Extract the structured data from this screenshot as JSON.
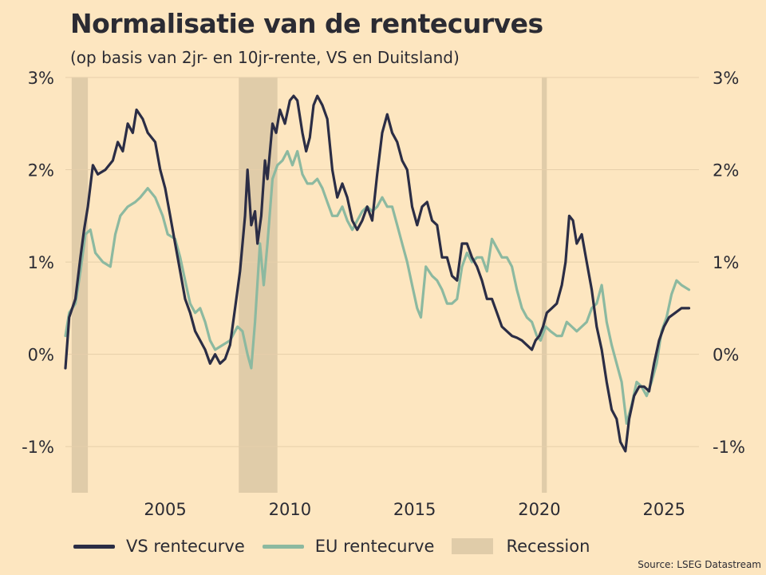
{
  "title": "Normalisatie van de rentecurves",
  "subtitle": "(op basis van 2jr- en 10jr-rente, VS en Duitsland)",
  "source": "Source: LSEG Datastream",
  "legend": {
    "vs": "VS rentecurve",
    "eu": "EU rentecurve",
    "recession": "Recession"
  },
  "colors": {
    "background": "#fde6c0",
    "vs": "#2b2d45",
    "eu": "#8cb9a0",
    "recession": "#e0cca9",
    "grid": "#e6cfaa"
  },
  "chart_data": {
    "type": "line",
    "xlim": [
      2001.0,
      2026.4
    ],
    "ylim": [
      -1.5,
      3.0
    ],
    "x_ticks": [
      {
        "value": 2005,
        "label": "2005"
      },
      {
        "value": 2010,
        "label": "2010"
      },
      {
        "value": 2015,
        "label": "2015"
      },
      {
        "value": 2020,
        "label": "2020"
      },
      {
        "value": 2025,
        "label": "2025"
      }
    ],
    "y_ticks": [
      {
        "value": 3,
        "label": "3%"
      },
      {
        "value": 2,
        "label": "2%"
      },
      {
        "value": 1,
        "label": "1%"
      },
      {
        "value": 0,
        "label": "0%"
      },
      {
        "value": -1,
        "label": "-1%"
      }
    ],
    "recessions": [
      {
        "start": 2001.25,
        "end": 2001.9
      },
      {
        "start": 2007.95,
        "end": 2009.5
      },
      {
        "start": 2020.1,
        "end": 2020.3
      }
    ],
    "series": [
      {
        "name": "VS rentecurve",
        "points": [
          [
            2001.0,
            -0.15
          ],
          [
            2001.15,
            0.4
          ],
          [
            2001.4,
            0.6
          ],
          [
            2001.6,
            1.05
          ],
          [
            2001.75,
            1.35
          ],
          [
            2001.9,
            1.6
          ],
          [
            2002.1,
            2.05
          ],
          [
            2002.3,
            1.95
          ],
          [
            2002.6,
            2.0
          ],
          [
            2002.9,
            2.1
          ],
          [
            2003.1,
            2.3
          ],
          [
            2003.3,
            2.2
          ],
          [
            2003.5,
            2.5
          ],
          [
            2003.7,
            2.4
          ],
          [
            2003.85,
            2.65
          ],
          [
            2004.1,
            2.55
          ],
          [
            2004.3,
            2.4
          ],
          [
            2004.6,
            2.3
          ],
          [
            2004.8,
            2.0
          ],
          [
            2005.0,
            1.8
          ],
          [
            2005.2,
            1.5
          ],
          [
            2005.4,
            1.2
          ],
          [
            2005.6,
            0.9
          ],
          [
            2005.8,
            0.6
          ],
          [
            2006.0,
            0.45
          ],
          [
            2006.2,
            0.25
          ],
          [
            2006.4,
            0.15
          ],
          [
            2006.6,
            0.05
          ],
          [
            2006.8,
            -0.1
          ],
          [
            2007.0,
            0.0
          ],
          [
            2007.2,
            -0.1
          ],
          [
            2007.4,
            -0.05
          ],
          [
            2007.6,
            0.1
          ],
          [
            2007.8,
            0.5
          ],
          [
            2008.0,
            0.9
          ],
          [
            2008.2,
            1.5
          ],
          [
            2008.3,
            2.0
          ],
          [
            2008.45,
            1.4
          ],
          [
            2008.6,
            1.55
          ],
          [
            2008.7,
            1.2
          ],
          [
            2008.85,
            1.5
          ],
          [
            2009.0,
            2.1
          ],
          [
            2009.1,
            1.9
          ],
          [
            2009.3,
            2.5
          ],
          [
            2009.45,
            2.4
          ],
          [
            2009.6,
            2.65
          ],
          [
            2009.8,
            2.5
          ],
          [
            2010.0,
            2.75
          ],
          [
            2010.15,
            2.8
          ],
          [
            2010.3,
            2.75
          ],
          [
            2010.5,
            2.4
          ],
          [
            2010.65,
            2.2
          ],
          [
            2010.8,
            2.35
          ],
          [
            2010.95,
            2.7
          ],
          [
            2011.1,
            2.8
          ],
          [
            2011.3,
            2.7
          ],
          [
            2011.5,
            2.55
          ],
          [
            2011.7,
            2.0
          ],
          [
            2011.9,
            1.7
          ],
          [
            2012.1,
            1.85
          ],
          [
            2012.3,
            1.7
          ],
          [
            2012.5,
            1.45
          ],
          [
            2012.7,
            1.35
          ],
          [
            2012.9,
            1.45
          ],
          [
            2013.1,
            1.6
          ],
          [
            2013.3,
            1.45
          ],
          [
            2013.5,
            1.95
          ],
          [
            2013.7,
            2.4
          ],
          [
            2013.9,
            2.6
          ],
          [
            2014.1,
            2.4
          ],
          [
            2014.3,
            2.3
          ],
          [
            2014.5,
            2.1
          ],
          [
            2014.7,
            2.0
          ],
          [
            2014.9,
            1.6
          ],
          [
            2015.1,
            1.4
          ],
          [
            2015.3,
            1.6
          ],
          [
            2015.5,
            1.65
          ],
          [
            2015.7,
            1.45
          ],
          [
            2015.9,
            1.4
          ],
          [
            2016.1,
            1.05
          ],
          [
            2016.3,
            1.05
          ],
          [
            2016.5,
            0.85
          ],
          [
            2016.7,
            0.8
          ],
          [
            2016.9,
            1.2
          ],
          [
            2017.1,
            1.2
          ],
          [
            2017.3,
            1.05
          ],
          [
            2017.5,
            0.95
          ],
          [
            2017.7,
            0.8
          ],
          [
            2017.9,
            0.6
          ],
          [
            2018.1,
            0.6
          ],
          [
            2018.3,
            0.45
          ],
          [
            2018.5,
            0.3
          ],
          [
            2018.7,
            0.25
          ],
          [
            2018.9,
            0.2
          ],
          [
            2019.1,
            0.18
          ],
          [
            2019.3,
            0.15
          ],
          [
            2019.5,
            0.1
          ],
          [
            2019.7,
            0.05
          ],
          [
            2019.85,
            0.15
          ],
          [
            2020.0,
            0.2
          ],
          [
            2020.15,
            0.3
          ],
          [
            2020.3,
            0.45
          ],
          [
            2020.5,
            0.5
          ],
          [
            2020.7,
            0.55
          ],
          [
            2020.9,
            0.75
          ],
          [
            2021.05,
            1.0
          ],
          [
            2021.2,
            1.5
          ],
          [
            2021.35,
            1.45
          ],
          [
            2021.5,
            1.2
          ],
          [
            2021.7,
            1.3
          ],
          [
            2021.9,
            1.0
          ],
          [
            2022.1,
            0.7
          ],
          [
            2022.3,
            0.3
          ],
          [
            2022.5,
            0.05
          ],
          [
            2022.7,
            -0.3
          ],
          [
            2022.9,
            -0.6
          ],
          [
            2023.1,
            -0.7
          ],
          [
            2023.25,
            -0.95
          ],
          [
            2023.45,
            -1.05
          ],
          [
            2023.6,
            -0.7
          ],
          [
            2023.8,
            -0.45
          ],
          [
            2024.0,
            -0.35
          ],
          [
            2024.2,
            -0.35
          ],
          [
            2024.4,
            -0.4
          ],
          [
            2024.6,
            -0.1
          ],
          [
            2024.8,
            0.15
          ],
          [
            2025.0,
            0.3
          ],
          [
            2025.2,
            0.4
          ],
          [
            2025.45,
            0.45
          ],
          [
            2025.7,
            0.5
          ],
          [
            2026.0,
            0.5
          ]
        ]
      },
      {
        "name": "EU rentecurve",
        "points": [
          [
            2001.0,
            0.2
          ],
          [
            2001.15,
            0.45
          ],
          [
            2001.4,
            0.55
          ],
          [
            2001.6,
            0.9
          ],
          [
            2001.8,
            1.3
          ],
          [
            2002.0,
            1.35
          ],
          [
            2002.2,
            1.1
          ],
          [
            2002.5,
            1.0
          ],
          [
            2002.8,
            0.95
          ],
          [
            2003.0,
            1.3
          ],
          [
            2003.2,
            1.5
          ],
          [
            2003.5,
            1.6
          ],
          [
            2003.8,
            1.65
          ],
          [
            2004.0,
            1.7
          ],
          [
            2004.3,
            1.8
          ],
          [
            2004.6,
            1.7
          ],
          [
            2004.9,
            1.5
          ],
          [
            2005.1,
            1.3
          ],
          [
            2005.4,
            1.25
          ],
          [
            2005.6,
            1.05
          ],
          [
            2005.8,
            0.8
          ],
          [
            2006.0,
            0.55
          ],
          [
            2006.2,
            0.45
          ],
          [
            2006.4,
            0.5
          ],
          [
            2006.6,
            0.35
          ],
          [
            2006.8,
            0.15
          ],
          [
            2007.0,
            0.05
          ],
          [
            2007.3,
            0.1
          ],
          [
            2007.6,
            0.15
          ],
          [
            2007.9,
            0.3
          ],
          [
            2008.1,
            0.25
          ],
          [
            2008.3,
            0.0
          ],
          [
            2008.45,
            -0.15
          ],
          [
            2008.6,
            0.35
          ],
          [
            2008.8,
            1.2
          ],
          [
            2008.95,
            0.75
          ],
          [
            2009.1,
            1.2
          ],
          [
            2009.3,
            1.9
          ],
          [
            2009.5,
            2.05
          ],
          [
            2009.7,
            2.1
          ],
          [
            2009.9,
            2.2
          ],
          [
            2010.1,
            2.05
          ],
          [
            2010.3,
            2.2
          ],
          [
            2010.5,
            1.95
          ],
          [
            2010.7,
            1.85
          ],
          [
            2010.9,
            1.85
          ],
          [
            2011.1,
            1.9
          ],
          [
            2011.3,
            1.8
          ],
          [
            2011.5,
            1.65
          ],
          [
            2011.7,
            1.5
          ],
          [
            2011.9,
            1.5
          ],
          [
            2012.1,
            1.6
          ],
          [
            2012.3,
            1.45
          ],
          [
            2012.5,
            1.35
          ],
          [
            2012.7,
            1.45
          ],
          [
            2012.9,
            1.55
          ],
          [
            2013.1,
            1.6
          ],
          [
            2013.3,
            1.55
          ],
          [
            2013.5,
            1.6
          ],
          [
            2013.7,
            1.7
          ],
          [
            2013.9,
            1.6
          ],
          [
            2014.1,
            1.6
          ],
          [
            2014.3,
            1.4
          ],
          [
            2014.5,
            1.2
          ],
          [
            2014.7,
            1.0
          ],
          [
            2014.9,
            0.75
          ],
          [
            2015.1,
            0.5
          ],
          [
            2015.25,
            0.4
          ],
          [
            2015.45,
            0.95
          ],
          [
            2015.7,
            0.85
          ],
          [
            2015.9,
            0.8
          ],
          [
            2016.1,
            0.7
          ],
          [
            2016.3,
            0.55
          ],
          [
            2016.5,
            0.55
          ],
          [
            2016.7,
            0.6
          ],
          [
            2016.9,
            0.95
          ],
          [
            2017.1,
            1.1
          ],
          [
            2017.3,
            1.0
          ],
          [
            2017.5,
            1.05
          ],
          [
            2017.7,
            1.05
          ],
          [
            2017.9,
            0.9
          ],
          [
            2018.1,
            1.25
          ],
          [
            2018.3,
            1.15
          ],
          [
            2018.5,
            1.05
          ],
          [
            2018.7,
            1.05
          ],
          [
            2018.9,
            0.95
          ],
          [
            2019.1,
            0.7
          ],
          [
            2019.3,
            0.5
          ],
          [
            2019.5,
            0.4
          ],
          [
            2019.7,
            0.35
          ],
          [
            2019.9,
            0.2
          ],
          [
            2020.05,
            0.15
          ],
          [
            2020.25,
            0.3
          ],
          [
            2020.45,
            0.25
          ],
          [
            2020.7,
            0.2
          ],
          [
            2020.9,
            0.2
          ],
          [
            2021.1,
            0.35
          ],
          [
            2021.3,
            0.3
          ],
          [
            2021.5,
            0.25
          ],
          [
            2021.7,
            0.3
          ],
          [
            2021.9,
            0.35
          ],
          [
            2022.1,
            0.5
          ],
          [
            2022.3,
            0.55
          ],
          [
            2022.5,
            0.75
          ],
          [
            2022.7,
            0.35
          ],
          [
            2022.9,
            0.1
          ],
          [
            2023.1,
            -0.1
          ],
          [
            2023.3,
            -0.3
          ],
          [
            2023.5,
            -0.75
          ],
          [
            2023.7,
            -0.55
          ],
          [
            2023.9,
            -0.3
          ],
          [
            2024.1,
            -0.35
          ],
          [
            2024.3,
            -0.45
          ],
          [
            2024.5,
            -0.3
          ],
          [
            2024.7,
            -0.1
          ],
          [
            2024.9,
            0.25
          ],
          [
            2025.1,
            0.4
          ],
          [
            2025.3,
            0.65
          ],
          [
            2025.5,
            0.8
          ],
          [
            2025.7,
            0.75
          ],
          [
            2026.0,
            0.7
          ]
        ]
      }
    ]
  }
}
